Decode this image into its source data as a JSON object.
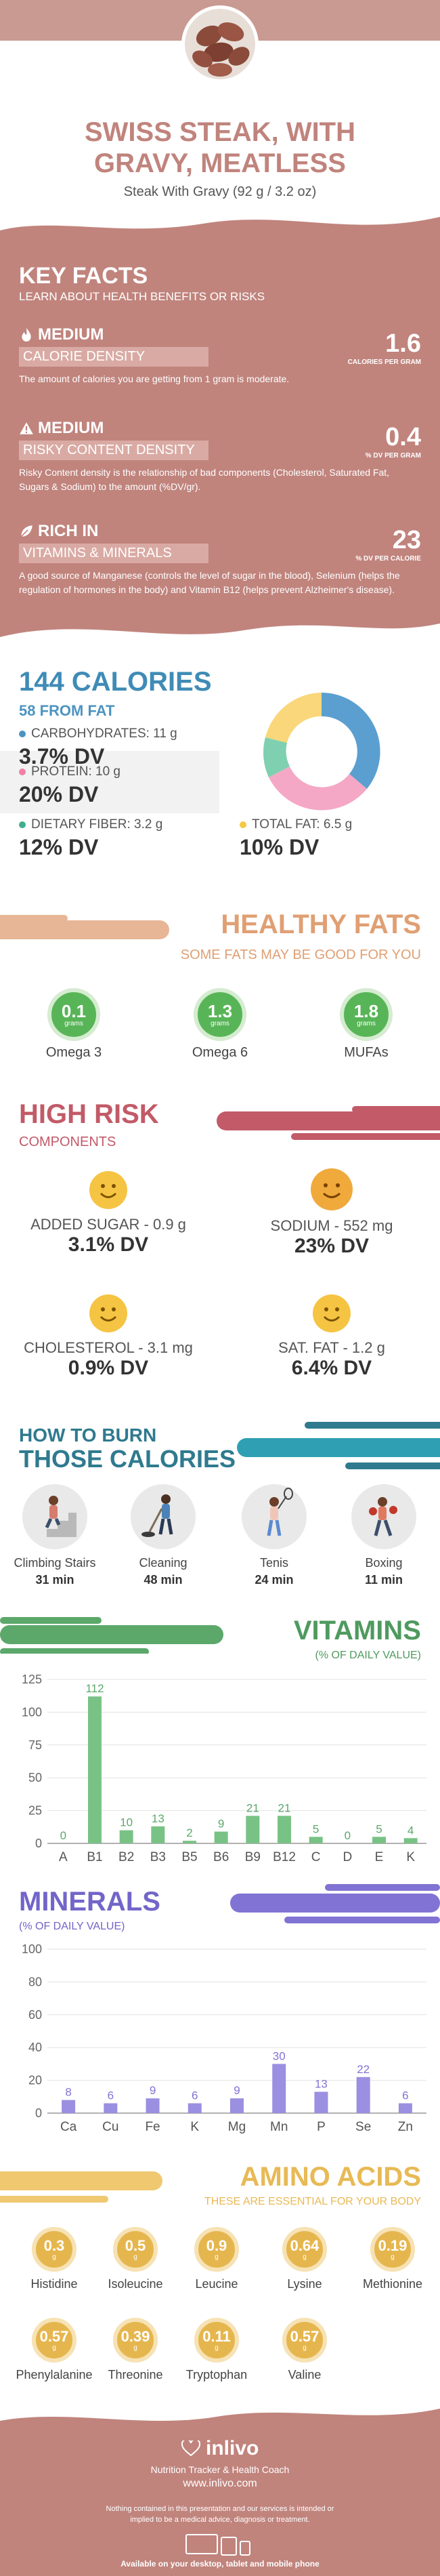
{
  "hero": {
    "title_line1": "SWISS STEAK, WITH",
    "title_line2": "GRAVY, MEATLESS",
    "subtitle": "Steak With Gravy (92 g / 3.2 oz)"
  },
  "key_facts": {
    "title": "KEY FACTS",
    "subtitle": "LEARN ABOUT HEALTH BENEFITS OR RISKS",
    "items": [
      {
        "level": "MEDIUM",
        "label": "CALORIE DENSITY",
        "value": "1.6",
        "unit": "CALORIES PER GRAM",
        "desc": "The amount of calories you are getting from 1 gram is moderate.",
        "icon": "flame-icon"
      },
      {
        "level": "MEDIUM",
        "label": "RISKY CONTENT DENSITY",
        "value": "0.4",
        "unit": "% DV PER GRAM",
        "desc": "Risky Content density is the relationship of bad components (Cholesterol, Saturated Fat, Sugars & Sodium) to the amount (%DV/gr).",
        "icon": "warning-icon"
      },
      {
        "level": "RICH  IN",
        "label": "VITAMINS & MINERALS",
        "value": "23",
        "unit": "% DV PER CALORIE",
        "desc": "A good source of Manganese (controls the level of sugar in the blood), Selenium (helps the regulation of hormones in the body) and Vitamin B12 (helps prevent Alzheimer's disease).",
        "icon": "leaf-icon"
      }
    ]
  },
  "calories": {
    "title": "144 CALORIES",
    "subtitle": "58 FROM FAT",
    "macros": [
      {
        "label": "CARBOHYDRATES: 11 g",
        "dv": "3.7% DV",
        "color": "#4c94c0"
      },
      {
        "label": "PROTEIN: 10 g",
        "dv": "20% DV",
        "color": "#f07fa6"
      },
      {
        "label": "DIETARY FIBER: 3.2 g",
        "dv": "12% DV",
        "color": "#3fae8f"
      },
      {
        "label": "TOTAL FAT: 6.5 g",
        "dv": "10% DV",
        "color": "#f7c843"
      }
    ]
  },
  "healthy_fats": {
    "title": "HEALTHY FATS",
    "subtitle": "SOME FATS MAY BE GOOD FOR YOU",
    "items": [
      {
        "value": "0.1",
        "unit": "grams",
        "name": "Omega 3"
      },
      {
        "value": "1.3",
        "unit": "grams",
        "name": "Omega 6"
      },
      {
        "value": "1.8",
        "unit": "grams",
        "name": "MUFAs"
      }
    ]
  },
  "high_risk": {
    "title": "HIGH RISK",
    "subtitle": "COMPONENTS",
    "items": [
      {
        "label": "ADDED SUGAR - 0.9 g",
        "dv": "3.1% DV"
      },
      {
        "label": "SODIUM - 552 mg",
        "dv": "23% DV"
      },
      {
        "label": "CHOLESTEROL - 3.1 mg",
        "dv": "0.9% DV"
      },
      {
        "label": "SAT. FAT - 1.2 g",
        "dv": "6.4% DV"
      }
    ]
  },
  "burn": {
    "title1": "HOW TO BURN",
    "title2": "THOSE CALORIES",
    "activities": [
      {
        "name": "Climbing Stairs",
        "minutes": "31 min"
      },
      {
        "name": "Cleaning",
        "minutes": "48 min"
      },
      {
        "name": "Tenis",
        "minutes": "24 min"
      },
      {
        "name": "Boxing",
        "minutes": "11 min"
      }
    ]
  },
  "vitamins": {
    "title": "VITAMINS",
    "subtitle": "(% OF DAILY VALUE)",
    "color": "#5ba86a",
    "chart_data": {
      "type": "bar",
      "categories": [
        "A",
        "B1",
        "B2",
        "B3",
        "B5",
        "B6",
        "B9",
        "B12",
        "C",
        "D",
        "E",
        "K"
      ],
      "values": [
        0,
        112,
        10,
        13,
        2,
        9,
        21,
        21,
        5,
        0,
        5,
        4
      ],
      "ylim": [
        0,
        125
      ],
      "yticks": [
        0,
        25,
        50,
        75,
        100,
        125
      ]
    }
  },
  "minerals": {
    "title": "MINERALS",
    "subtitle": "(% OF DAILY VALUE)",
    "color": "#8173d4",
    "chart_data": {
      "type": "bar",
      "categories": [
        "Ca",
        "Cu",
        "Fe",
        "K",
        "Mg",
        "Mn",
        "P",
        "Se",
        "Zn"
      ],
      "values": [
        8,
        6,
        9,
        6,
        9,
        30,
        13,
        22,
        6
      ],
      "ylim": [
        0,
        100
      ],
      "yticks": [
        0,
        20,
        40,
        60,
        80,
        100
      ]
    }
  },
  "amino": {
    "title": "AMINO ACIDS",
    "subtitle": "THESE ARE ESSENTIAL FOR YOUR BODY",
    "items": [
      {
        "value": "0.3",
        "unit": "g",
        "name": "Histidine"
      },
      {
        "value": "0.5",
        "unit": "g",
        "name": "Isoleucine"
      },
      {
        "value": "0.9",
        "unit": "g",
        "name": "Leucine"
      },
      {
        "value": "0.64",
        "unit": "g",
        "name": "Lysine"
      },
      {
        "value": "0.19",
        "unit": "g",
        "name": "Methionine"
      },
      {
        "value": "0.57",
        "unit": "g",
        "name": "Phenylalanine"
      },
      {
        "value": "0.39",
        "unit": "g",
        "name": "Threonine"
      },
      {
        "value": "0.11",
        "unit": "g",
        "name": "Tryptophan"
      },
      {
        "value": "0.57",
        "unit": "g",
        "name": "Valine"
      }
    ]
  },
  "footer": {
    "brand": "inlivo",
    "tagline": "Nutrition Tracker & Health Coach",
    "url": "www.inlivo.com",
    "disclaimer": "Nothing contained in this presentation and our services is intended or implied to be a medical advice, diagnosis or treatment.",
    "available": "Available on your desktop, tablet and mobile phone"
  }
}
